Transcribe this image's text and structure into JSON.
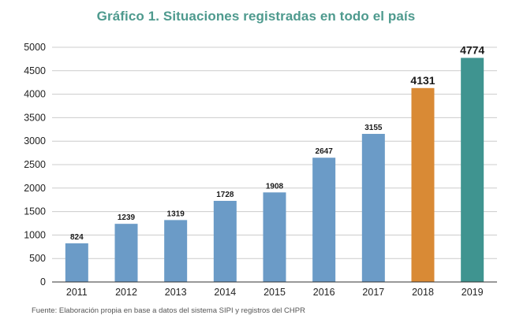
{
  "header": {
    "title": "Gráfico 1. Situaciones registradas en todo el país"
  },
  "footer": {
    "source": "Fuente: Elaboración propia en base a datos del sistema SIPI y registros del CHPR"
  },
  "colors": {
    "title": "#4e9a8e",
    "default_bar": "#6b9bc7",
    "highlight_2018": "#d98a35",
    "highlight_2019": "#3f9490",
    "grid": "#cccccc"
  },
  "chart_data": {
    "type": "bar",
    "title": "Gráfico 1. Situaciones registradas en todo el país",
    "xlabel": "",
    "ylabel": "",
    "categories": [
      "2011",
      "2012",
      "2013",
      "2014",
      "2015",
      "2016",
      "2017",
      "2018",
      "2019"
    ],
    "values": [
      824,
      1239,
      1319,
      1728,
      1908,
      2647,
      3155,
      4131,
      4774
    ],
    "data_labels": [
      "824",
      "1239",
      "1319",
      "1728",
      "1908",
      "2647",
      "3155",
      "4131",
      "4774"
    ],
    "bar_colors": [
      "#6b9bc7",
      "#6b9bc7",
      "#6b9bc7",
      "#6b9bc7",
      "#6b9bc7",
      "#6b9bc7",
      "#6b9bc7",
      "#d98a35",
      "#3f9490"
    ],
    "emphasized_labels": [
      false,
      false,
      false,
      false,
      false,
      false,
      false,
      true,
      true
    ],
    "ylim": [
      0,
      5000
    ],
    "yticks": [
      "0",
      "500",
      "1000",
      "1500",
      "2000",
      "2500",
      "3000",
      "3500",
      "4000",
      "4500",
      "5000"
    ],
    "grid": true,
    "legend": "none"
  }
}
